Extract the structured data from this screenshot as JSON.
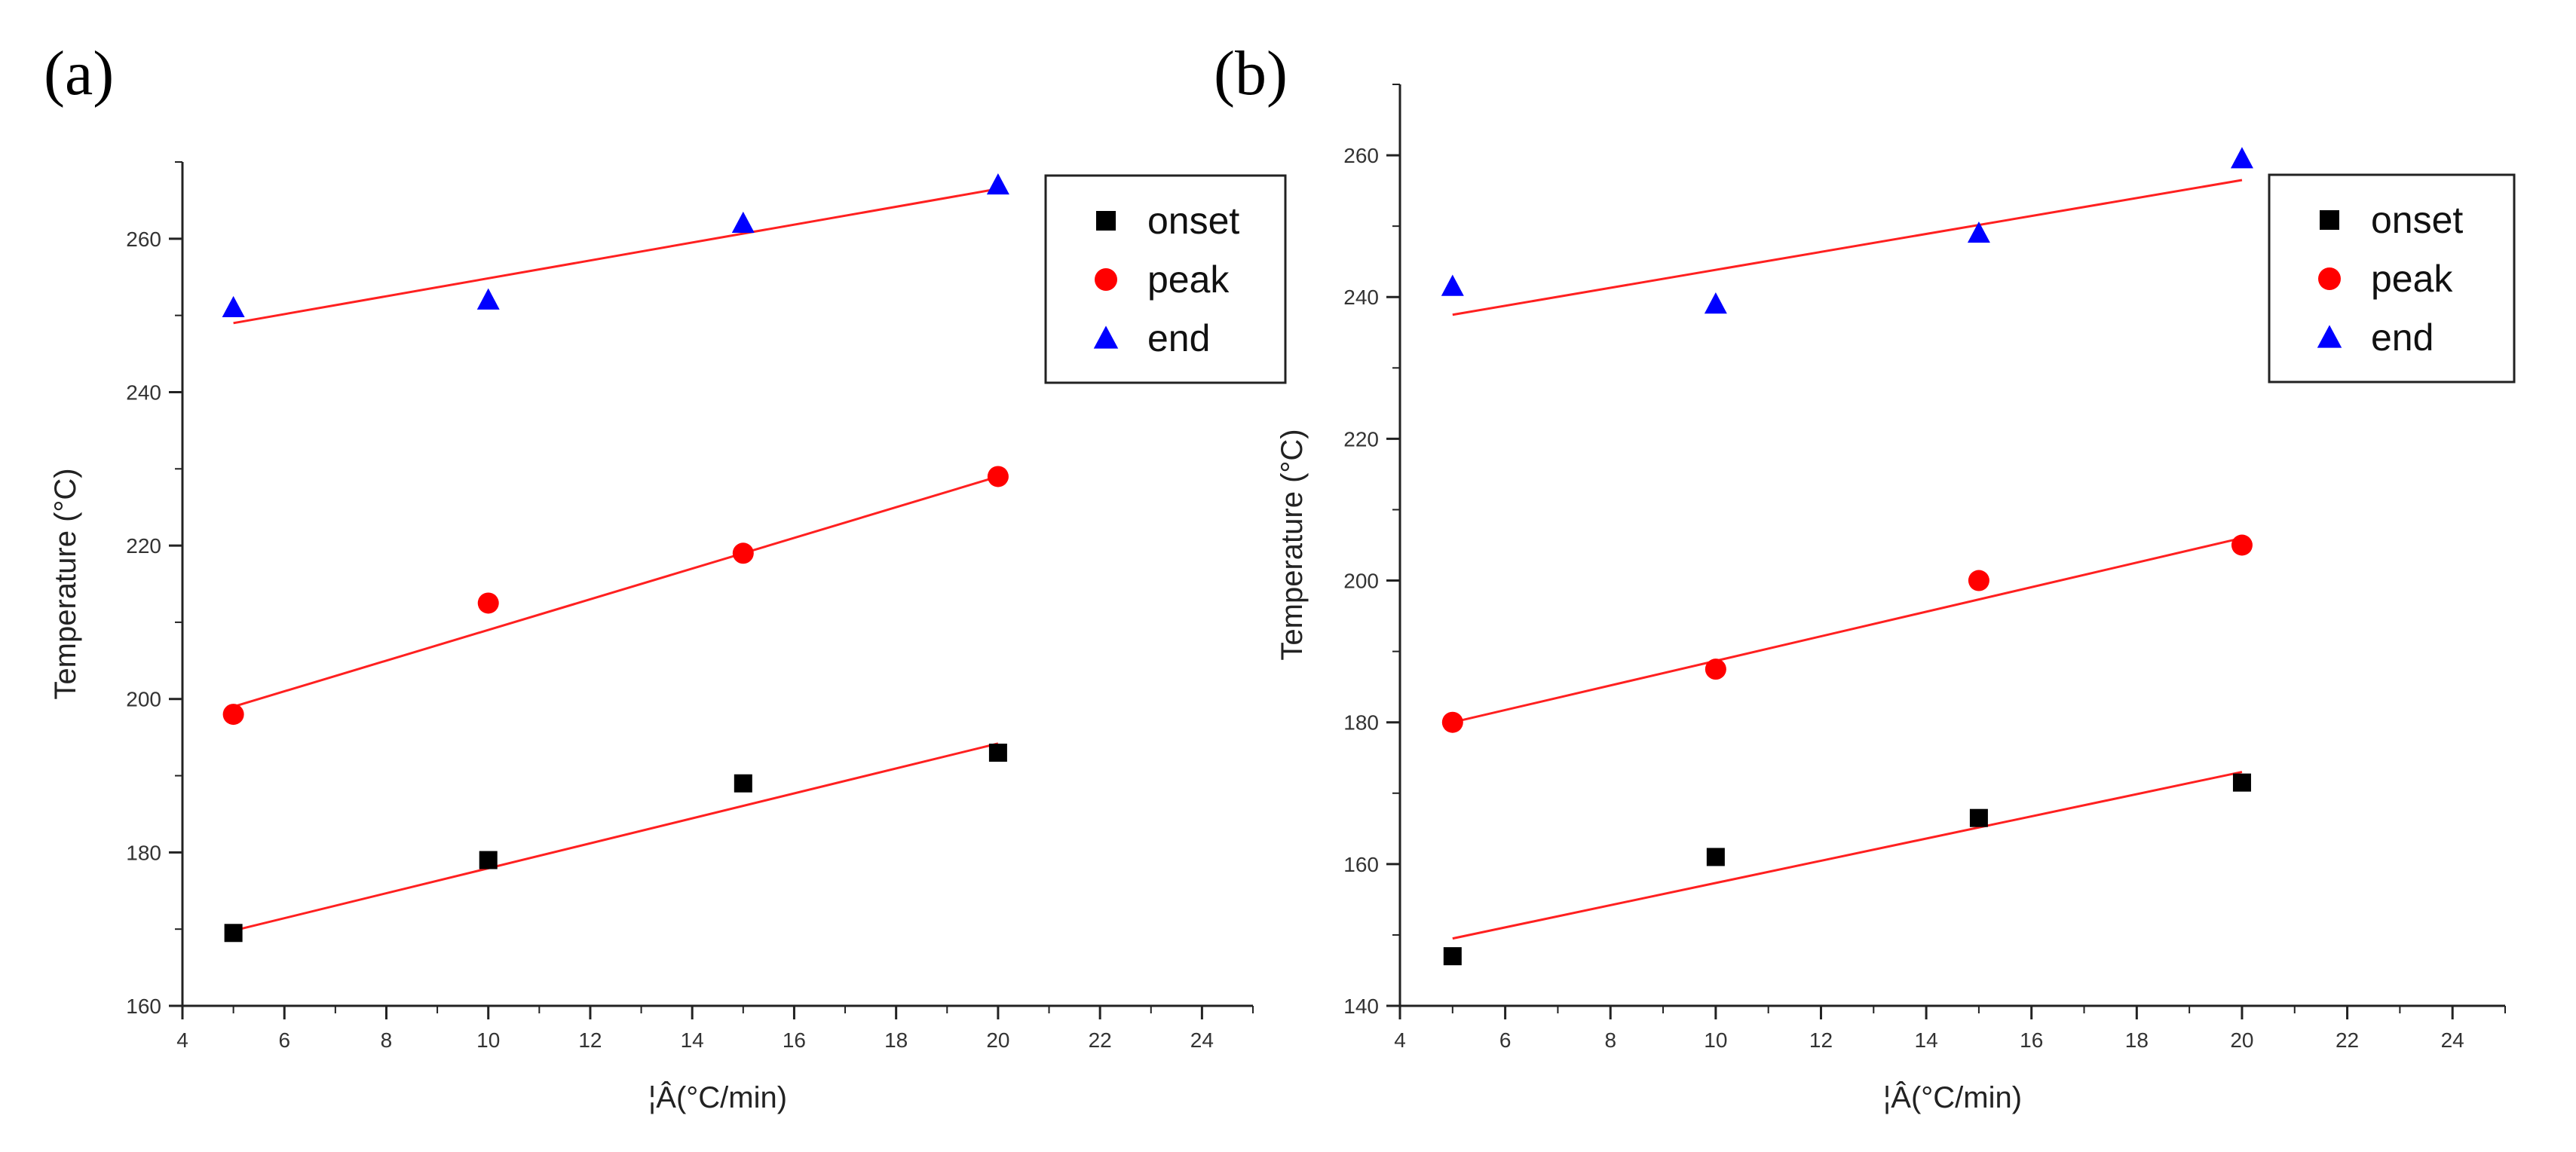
{
  "chart_data": [
    {
      "panel": "(a)",
      "type": "scatter",
      "title": "",
      "xlabel": "¦Â(°C/min)",
      "ylabel": "Temperature (°C)",
      "xlim": [
        4,
        25
      ],
      "ylim": [
        160,
        270
      ],
      "xticks": [
        4,
        6,
        8,
        10,
        12,
        14,
        16,
        18,
        20,
        22,
        24
      ],
      "yticks": [
        160,
        180,
        200,
        220,
        240,
        260
      ],
      "legend_position": "top-right",
      "fit_line_color": "#ff2020",
      "series": [
        {
          "name": "onset",
          "marker": "square",
          "color": "#000000",
          "x": [
            5,
            10,
            15,
            20
          ],
          "values": [
            169.5,
            179,
            189,
            193
          ],
          "fit": [
            [
              5,
              169.8
            ],
            [
              20,
              194.2
            ]
          ]
        },
        {
          "name": "peak",
          "marker": "circle",
          "color": "#ff0000",
          "x": [
            5,
            10,
            15,
            20
          ],
          "values": [
            198,
            212.5,
            219,
            229
          ],
          "fit": [
            [
              5,
              199
            ],
            [
              20,
              229
            ]
          ]
        },
        {
          "name": "end",
          "marker": "triangle",
          "color": "#0000ff",
          "x": [
            5,
            10,
            15,
            20
          ],
          "values": [
            251,
            252,
            262,
            267
          ],
          "fit": [
            [
              5,
              249
            ],
            [
              20,
              266.5
            ]
          ]
        }
      ]
    },
    {
      "panel": "(b)",
      "type": "scatter",
      "title": "",
      "xlabel": "¦Â(°C/min)",
      "ylabel": "Temperature (°C)",
      "xlim": [
        4,
        25
      ],
      "ylim": [
        140,
        270
      ],
      "xticks": [
        4,
        6,
        8,
        10,
        12,
        14,
        16,
        18,
        20,
        22,
        24
      ],
      "yticks": [
        140,
        160,
        180,
        200,
        220,
        240,
        260
      ],
      "legend_position": "top-right",
      "fit_line_color": "#ff2020",
      "series": [
        {
          "name": "onset",
          "marker": "square",
          "color": "#000000",
          "x": [
            5,
            10,
            15,
            20
          ],
          "values": [
            147,
            161,
            166.5,
            171.5
          ],
          "fit": [
            [
              5,
              149.5
            ],
            [
              20,
              173
            ]
          ]
        },
        {
          "name": "peak",
          "marker": "circle",
          "color": "#ff0000",
          "x": [
            5,
            10,
            15,
            20
          ],
          "values": [
            180,
            187.5,
            200,
            205
          ],
          "fit": [
            [
              5,
              180
            ],
            [
              20,
              206
            ]
          ]
        },
        {
          "name": "end",
          "marker": "triangle",
          "color": "#0000ff",
          "x": [
            5,
            10,
            15,
            20
          ],
          "values": [
            241.5,
            239,
            249,
            259.5
          ],
          "fit": [
            [
              5,
              237.5
            ],
            [
              20,
              256.5
            ]
          ]
        }
      ]
    }
  ]
}
